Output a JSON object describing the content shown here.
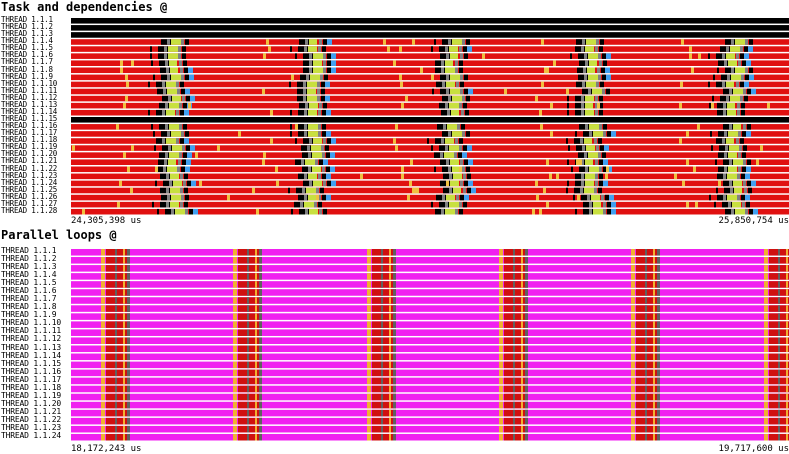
{
  "panels": [
    {
      "title": "Task and dependencies @",
      "threads": [
        "THREAD 1.1.1",
        "THREAD 1.1.2",
        "THREAD 1.1.3",
        "THREAD 1.1.4",
        "THREAD 1.1.5",
        "THREAD 1.1.6",
        "THREAD 1.1.7",
        "THREAD 1.1.8",
        "THREAD 1.1.9",
        "THREAD 1.1.10",
        "THREAD 1.1.11",
        "THREAD 1.1.12",
        "THREAD 1.1.13",
        "THREAD 1.1.14",
        "THREAD 1.1.15",
        "THREAD 1.1.16",
        "THREAD 1.1.17",
        "THREAD 1.1.18",
        "THREAD 1.1.19",
        "THREAD 1.1.20",
        "THREAD 1.1.21",
        "THREAD 1.1.22",
        "THREAD 1.1.23",
        "THREAD 1.1.24",
        "THREAD 1.1.25",
        "THREAD 1.1.26",
        "THREAD 1.1.27",
        "THREAD 1.1.28"
      ],
      "time_start": "24,305,398 us",
      "time_end": "25,850,754 us",
      "colors": {
        "idle": "#000000",
        "running": "#e01010",
        "sync": "#f0c040",
        "dependency": "#c8e040",
        "scheduling": "#40a0f0",
        "other": "#808080"
      }
    },
    {
      "title": "Parallel loops @",
      "threads": [
        "THREAD 1.1.1",
        "THREAD 1.1.2",
        "THREAD 1.1.3",
        "THREAD 1.1.4",
        "THREAD 1.1.5",
        "THREAD 1.1.6",
        "THREAD 1.1.7",
        "THREAD 1.1.8",
        "THREAD 1.1.9",
        "THREAD 1.1.10",
        "THREAD 1.1.11",
        "THREAD 1.1.12",
        "THREAD 1.1.13",
        "THREAD 1.1.14",
        "THREAD 1.1.15",
        "THREAD 1.1.16",
        "THREAD 1.1.17",
        "THREAD 1.1.18",
        "THREAD 1.1.19",
        "THREAD 1.1.20",
        "THREAD 1.1.21",
        "THREAD 1.1.22",
        "THREAD 1.1.23",
        "THREAD 1.1.24"
      ],
      "time_start": "18,172,243 us",
      "time_end": "19,717,600 us",
      "colors": {
        "loop": "#f020f0",
        "running": "#d01010",
        "sync": "#f0b030",
        "other": "#606060"
      }
    }
  ]
}
